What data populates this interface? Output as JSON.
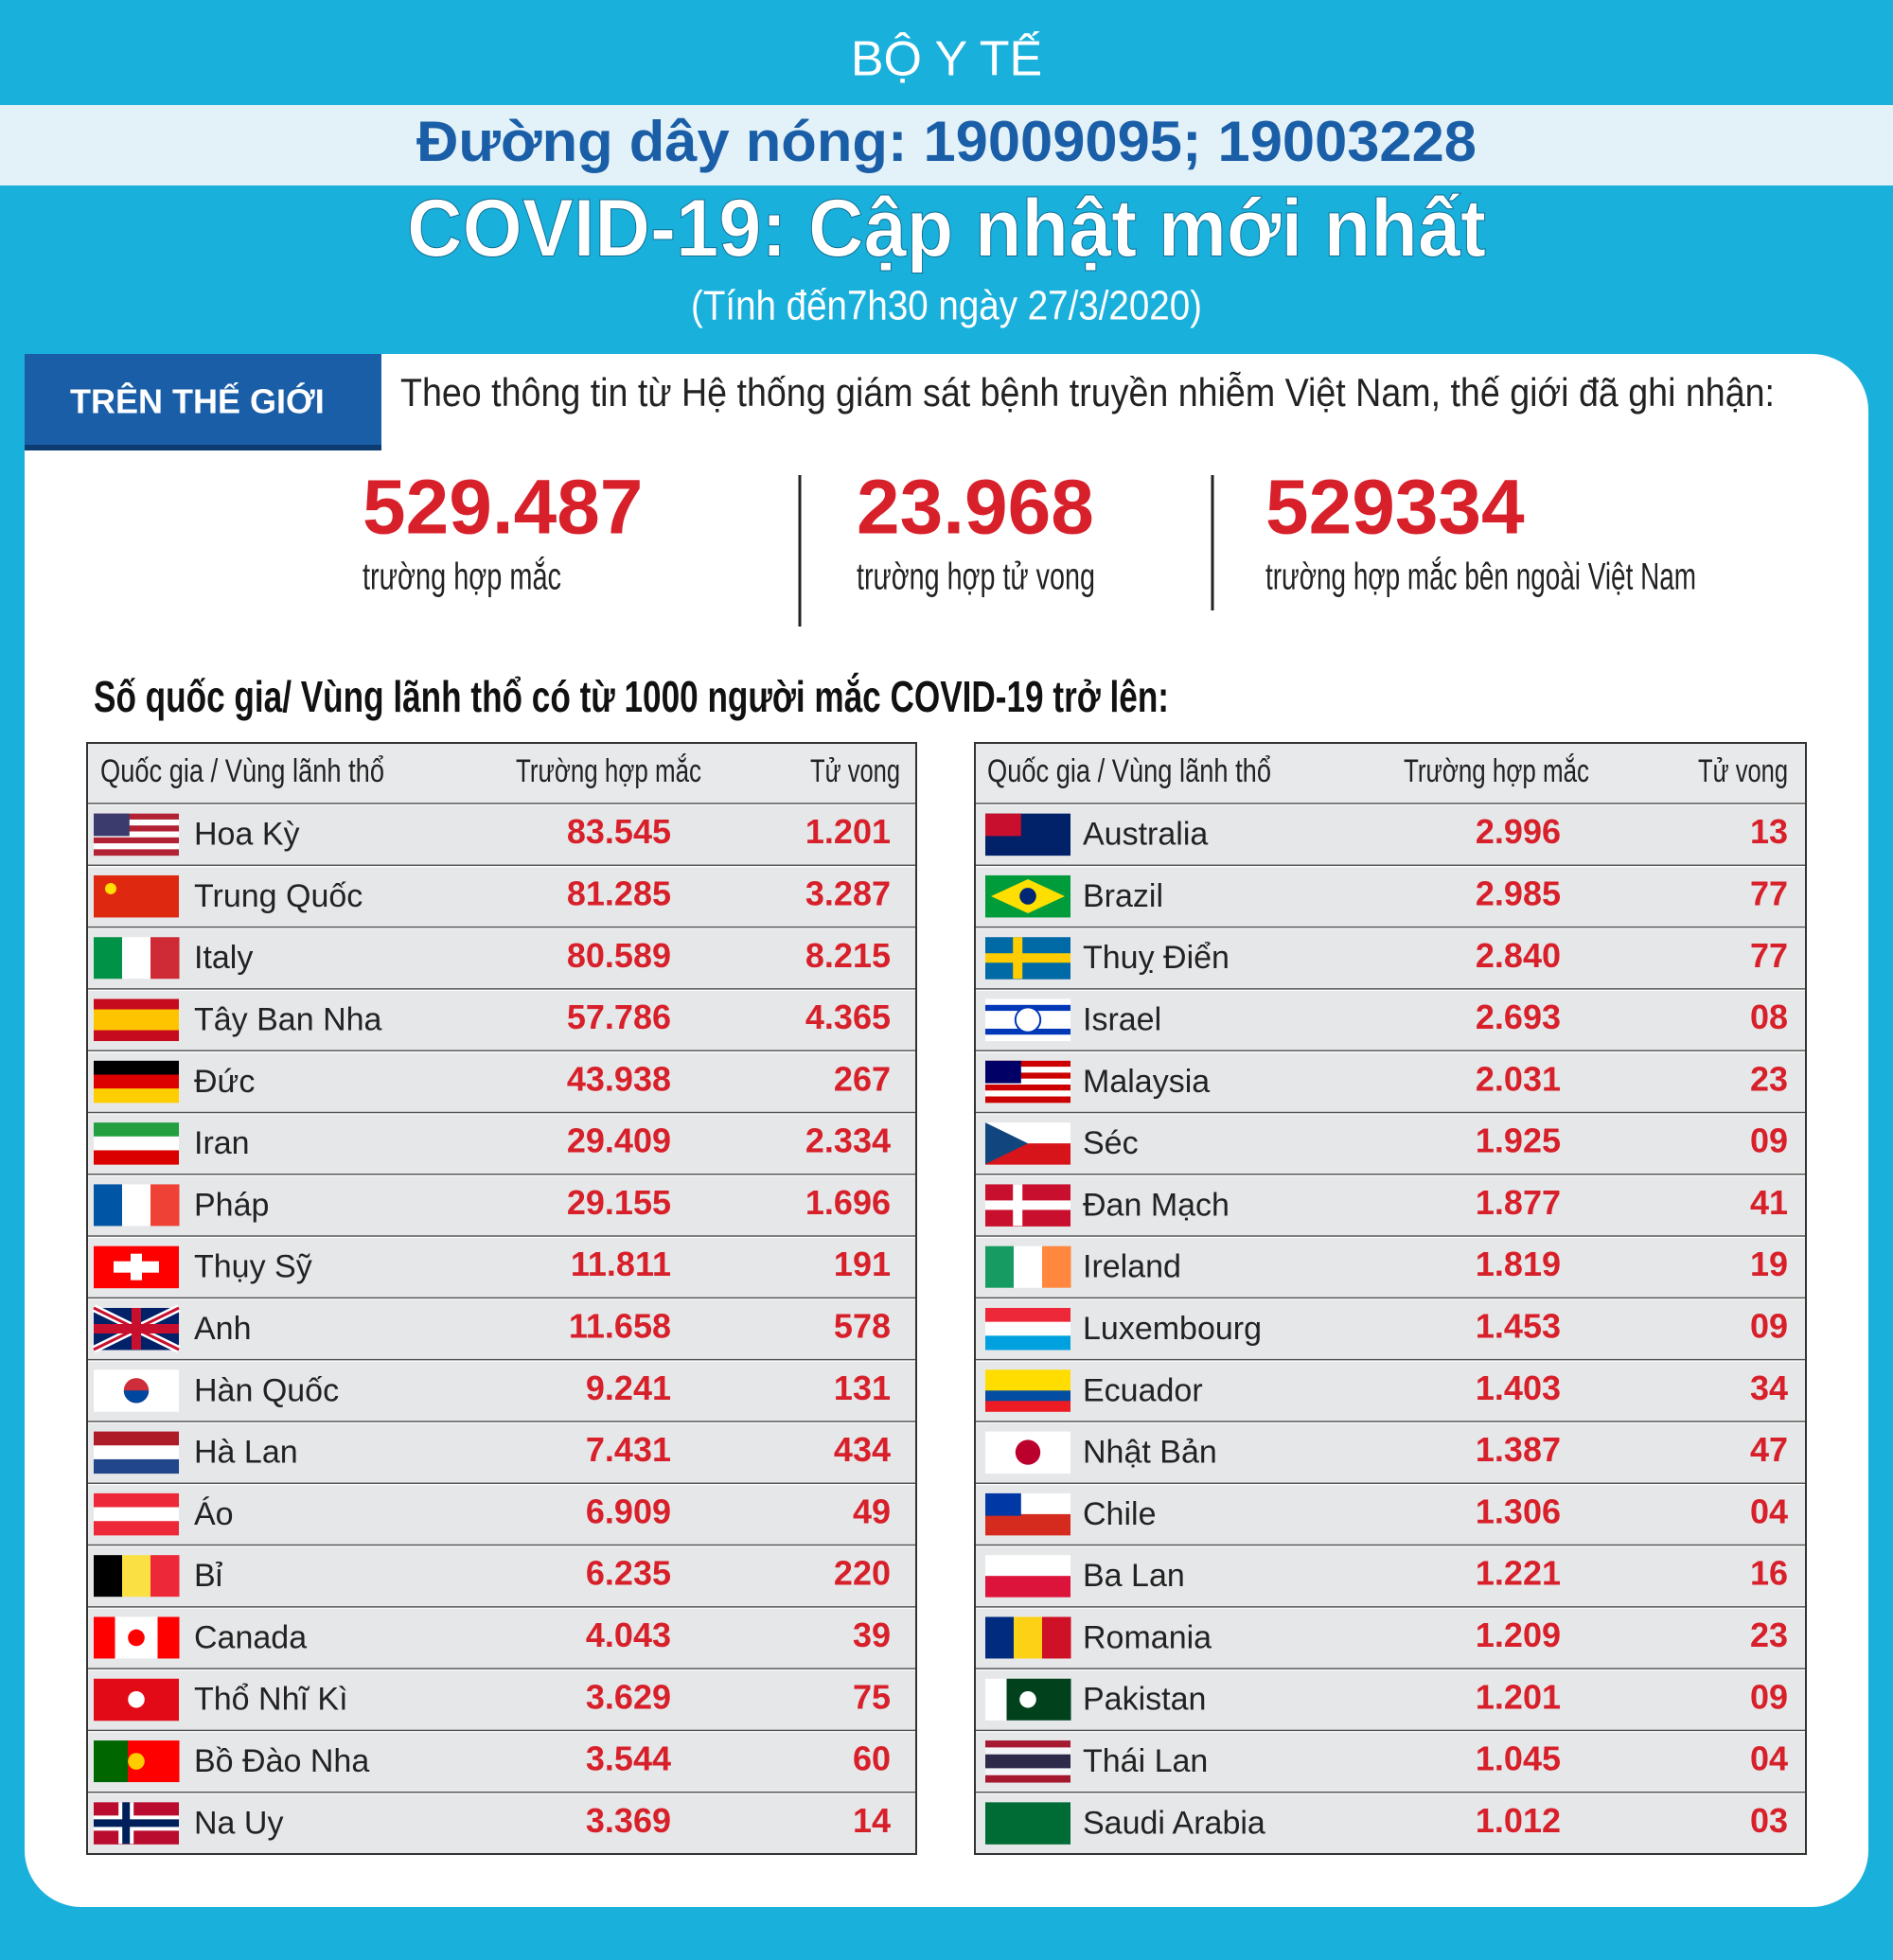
{
  "header": {
    "org": "BỘ Y TẾ",
    "hotline": "Đường dây nóng: 19009095; 19003228",
    "title": "COVID-19: Cập nhật mới nhất",
    "subtitle": "(Tính đến7h30 ngày 27/3/2020)"
  },
  "world": {
    "tab": "TRÊN THẾ GIỚI",
    "intro": "Theo thông tin từ Hệ thống giám sát bệnh truyền nhiễm Việt Nam, thế giới đã ghi nhận:",
    "stats": [
      {
        "value": "529.487",
        "label": "trường hợp mắc"
      },
      {
        "value": "23.968",
        "label": "trường hợp tử vong"
      },
      {
        "value": "529334",
        "label": "trường hợp  mắc bên ngoài Việt Nam"
      }
    ]
  },
  "tables": {
    "heading": "Số quốc gia/ Vùng lãnh thổ có từ 1000 người  mắc COVID-19 trở lên:",
    "columns": [
      "Quốc gia / Vùng lãnh thổ",
      "Trường hợp mắc",
      "Tử vong"
    ],
    "left": [
      [
        "Hoa Kỳ",
        "83.545",
        "1.201"
      ],
      [
        "Trung Quốc",
        "81.285",
        "3.287"
      ],
      [
        "Italy",
        "80.589",
        "8.215"
      ],
      [
        "Tây Ban Nha",
        "57.786",
        "4.365"
      ],
      [
        "Đức",
        "43.938",
        "267"
      ],
      [
        "Iran",
        "29.409",
        "2.334"
      ],
      [
        "Pháp",
        "29.155",
        "1.696"
      ],
      [
        "Thụy Sỹ",
        "11.811",
        "191"
      ],
      [
        "Anh",
        "11.658",
        "578"
      ],
      [
        "Hàn Quốc",
        "9.241",
        "131"
      ],
      [
        "Hà Lan",
        "7.431",
        "434"
      ],
      [
        "Áo",
        "6.909",
        "49"
      ],
      [
        "Bỉ",
        "6.235",
        "220"
      ],
      [
        "Canada",
        "4.043",
        "39"
      ],
      [
        "Thổ Nhĩ Kì",
        "3.629",
        "75"
      ],
      [
        "Bồ Đào Nha",
        "3.544",
        "60"
      ],
      [
        "Na Uy",
        "3.369",
        "14"
      ]
    ],
    "right": [
      [
        "Australia",
        "2.996",
        "13"
      ],
      [
        "Brazil",
        "2.985",
        "77"
      ],
      [
        "Thuỵ Điển",
        "2.840",
        "77"
      ],
      [
        "Israel",
        "2.693",
        "08"
      ],
      [
        "Malaysia",
        "2.031",
        "23"
      ],
      [
        "Séc",
        "1.925",
        "09"
      ],
      [
        "Đan Mạch",
        "1.877",
        "41"
      ],
      [
        "Ireland",
        "1.819",
        "19"
      ],
      [
        "Luxembourg",
        "1.453",
        "09"
      ],
      [
        "Ecuador",
        "1.403",
        "34"
      ],
      [
        "Nhật Bản",
        "1.387",
        "47"
      ],
      [
        "Chile",
        "1.306",
        "04"
      ],
      [
        "Ba Lan",
        "1.221",
        "16"
      ],
      [
        "Romania",
        "1.209",
        "23"
      ],
      [
        "Pakistan",
        "1.201",
        "09"
      ],
      [
        "Thái Lan",
        "1.045",
        "04"
      ],
      [
        "Saudi Arabia",
        "1.012",
        "03"
      ]
    ]
  }
}
